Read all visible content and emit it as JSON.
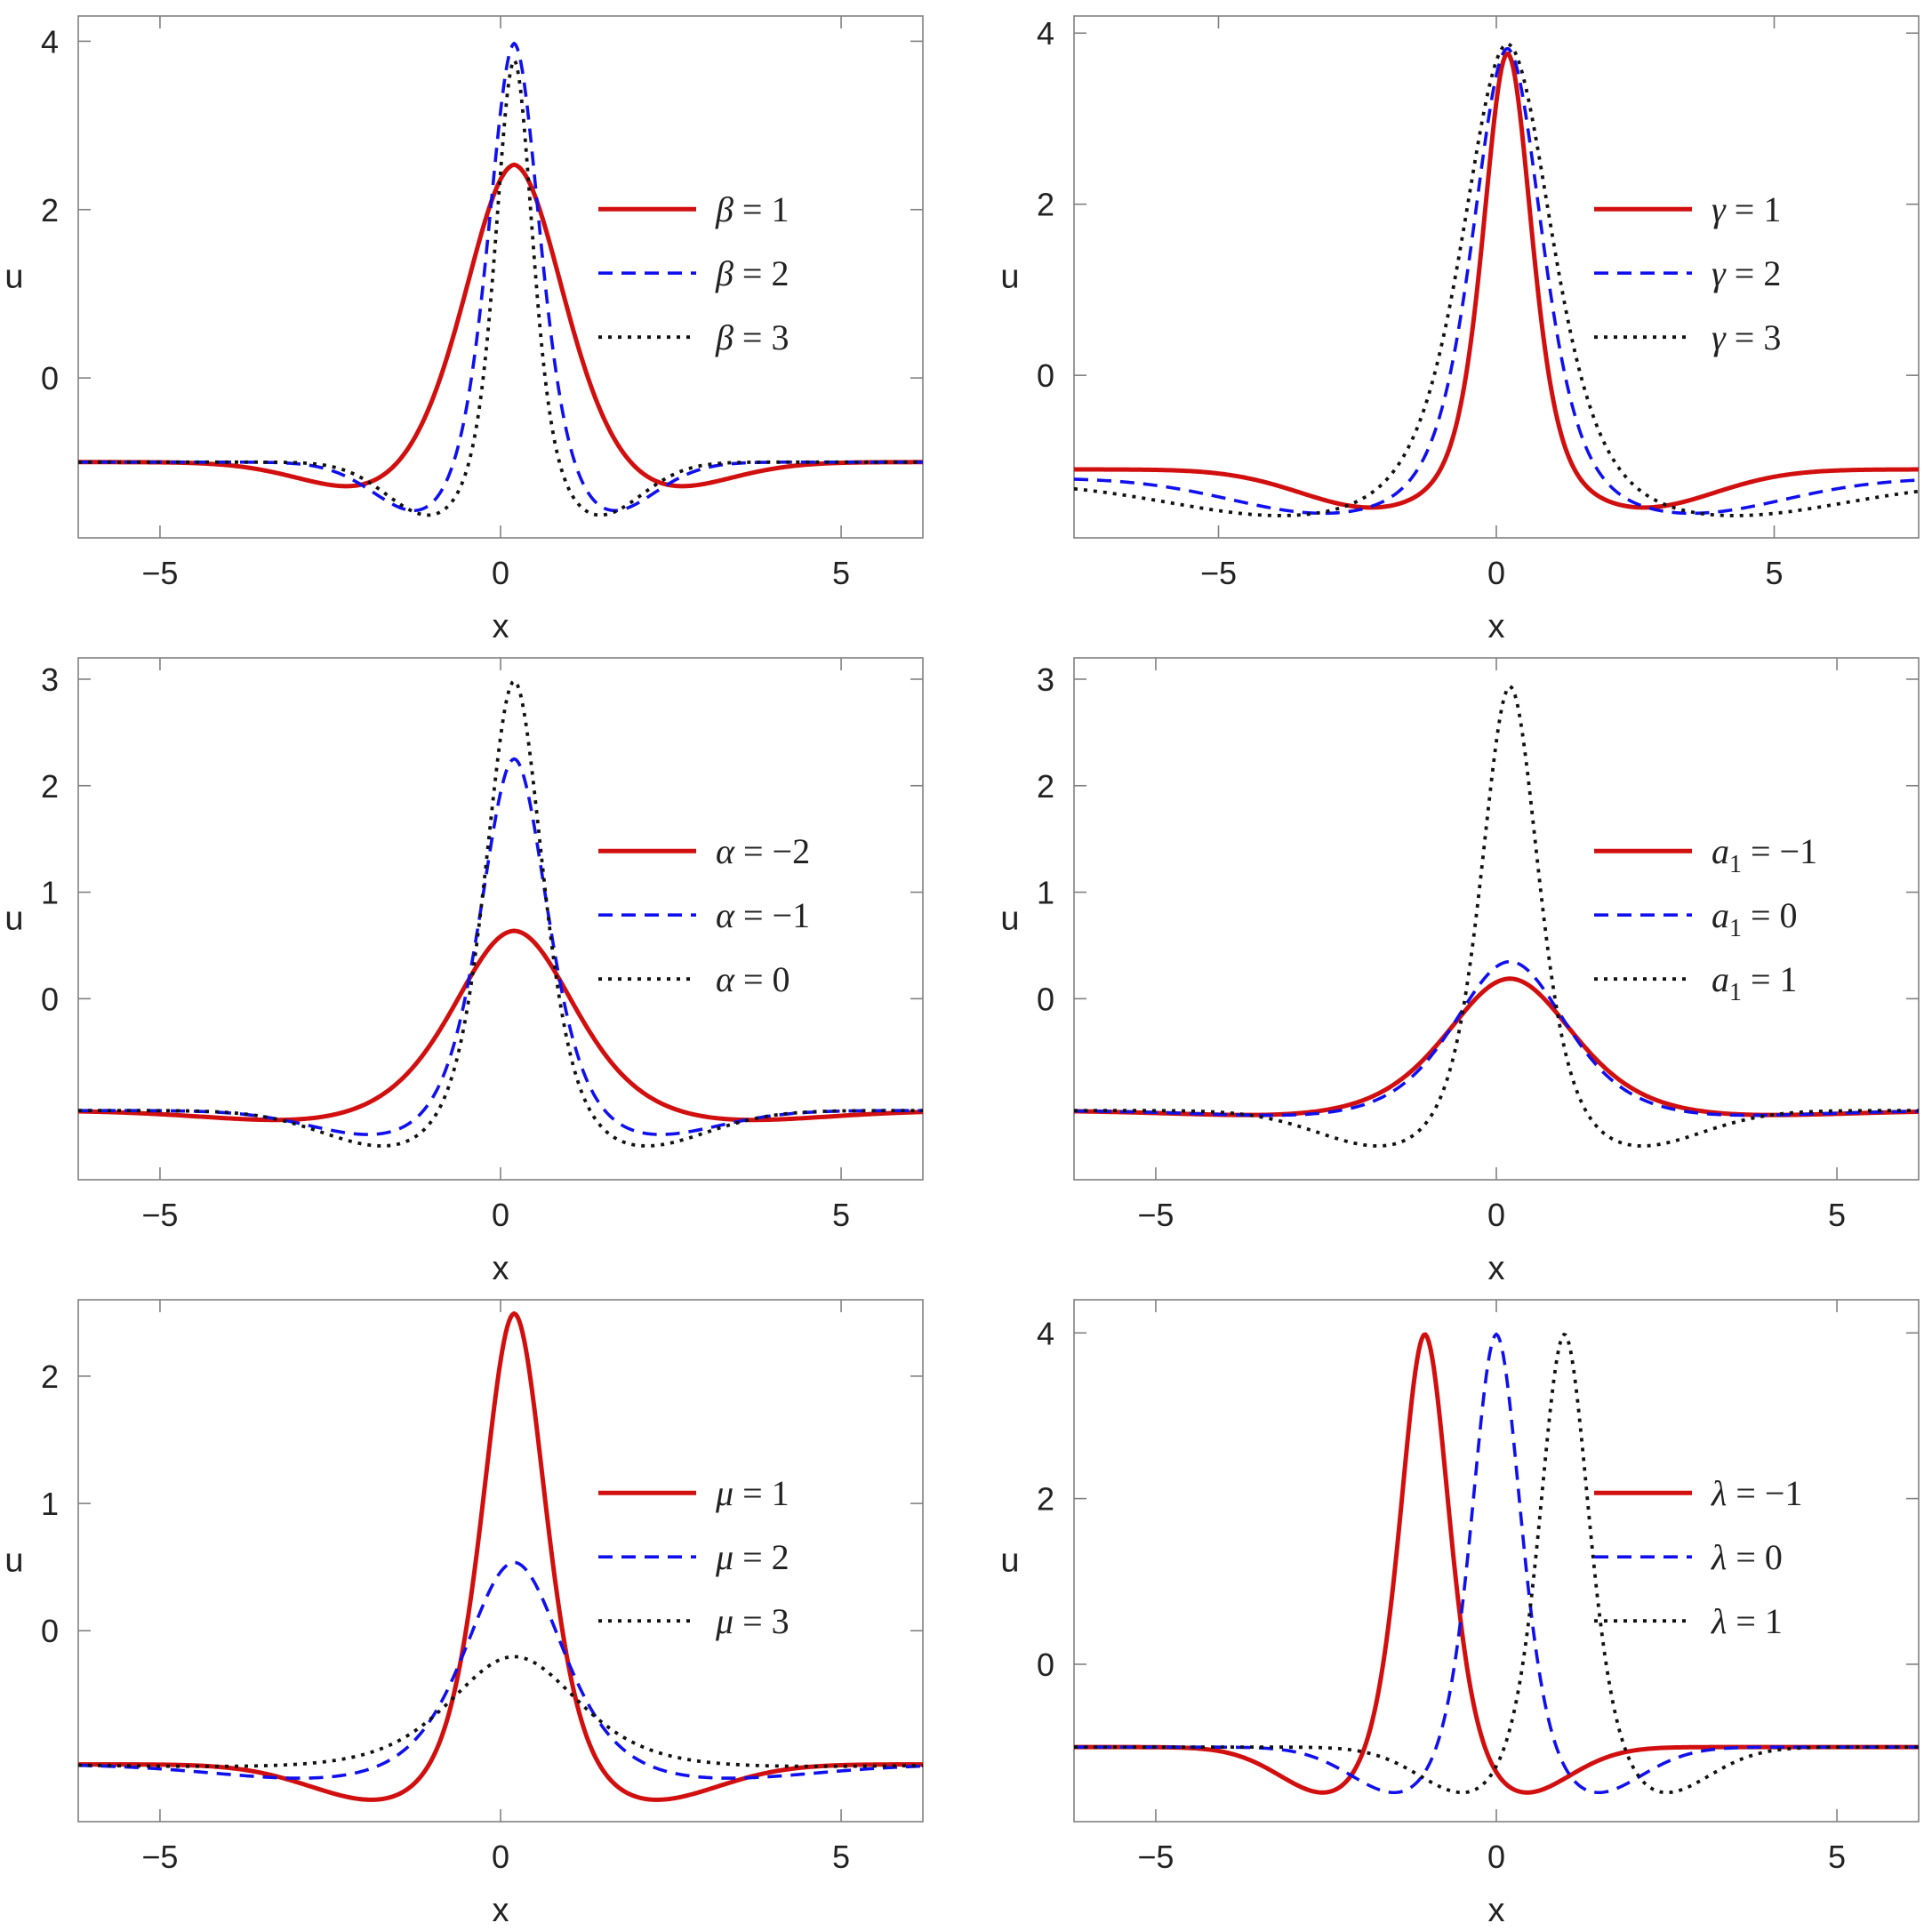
{
  "colors": {
    "red": "#d10f0f",
    "blue": "#1010ee",
    "black": "#111111"
  },
  "chart_data": [
    {
      "type": "line",
      "xlabel": "x",
      "ylabel": "u",
      "xlim": [
        -6.2,
        6.2
      ],
      "ylim": [
        -1.9,
        4.3
      ],
      "xticks": [
        -5,
        0,
        5
      ],
      "yticks": [
        0,
        2,
        4
      ],
      "peak_x": 0.2,
      "series": [
        {
          "name": "β = 1",
          "symbol": "β",
          "eq": " = 1",
          "style": "solid",
          "color": "#d10f0f",
          "peak": 2.62,
          "base": -1.0,
          "width": 1.0,
          "dip": 0.45,
          "dip_width": 1.9
        },
        {
          "name": "β = 2",
          "symbol": "β",
          "eq": " = 2",
          "style": "dashed",
          "color": "#1010ee",
          "peak": 4.1,
          "base": -1.0,
          "width": 0.5,
          "dip": 0.65,
          "dip_width": 1.3
        },
        {
          "name": "β = 3",
          "symbol": "β",
          "eq": " = 3",
          "style": "dotted",
          "color": "#111111",
          "peak": 3.9,
          "base": -1.0,
          "width": 0.36,
          "dip": 0.65,
          "dip_width": 1.2
        }
      ]
    },
    {
      "type": "line",
      "xlabel": "x",
      "ylabel": "u",
      "xlim": [
        -7.6,
        7.6
      ],
      "ylim": [
        -1.9,
        4.2
      ],
      "xticks": [
        -5,
        0,
        5
      ],
      "yticks": [
        0,
        2,
        4
      ],
      "peak_x": 0.2,
      "series": [
        {
          "name": "γ = 1",
          "symbol": "γ",
          "eq": " = 1",
          "style": "solid",
          "color": "#d10f0f",
          "peak": 3.85,
          "base": -1.1,
          "width": 0.58,
          "dip": 0.45,
          "dip_width": 2.4
        },
        {
          "name": "γ = 2",
          "symbol": "γ",
          "eq": " = 2",
          "style": "dashed",
          "color": "#1010ee",
          "peak": 3.9,
          "base": -1.2,
          "width": 0.82,
          "dip": 0.42,
          "dip_width": 3.2
        },
        {
          "name": "γ = 3",
          "symbol": "γ",
          "eq": " = 3",
          "style": "dotted",
          "color": "#111111",
          "peak": 3.95,
          "base": -1.25,
          "width": 1.05,
          "dip": 0.4,
          "dip_width": 3.9
        }
      ]
    },
    {
      "type": "line",
      "xlabel": "x",
      "ylabel": "u",
      "xlim": [
        -6.2,
        6.2
      ],
      "ylim": [
        -1.7,
        3.2
      ],
      "xticks": [
        -5,
        0,
        5
      ],
      "yticks": [
        0,
        1,
        2,
        3
      ],
      "peak_x": 0.2,
      "series": [
        {
          "name": "α = −2",
          "symbol": "α",
          "eq": " = −2",
          "style": "solid",
          "color": "#d10f0f",
          "peak": 0.66,
          "base": -1.05,
          "width": 1.2,
          "dip": 0.12,
          "dip_width": 2.8
        },
        {
          "name": "α = −1",
          "symbol": "α",
          "eq": " = −1",
          "style": "dashed",
          "color": "#1010ee",
          "peak": 2.3,
          "base": -1.05,
          "width": 0.65,
          "dip": 0.25,
          "dip_width": 1.9
        },
        {
          "name": "α = 0",
          "symbol": "α",
          "eq": " = 0",
          "style": "dotted",
          "color": "#111111",
          "peak": 3.05,
          "base": -1.05,
          "width": 0.55,
          "dip": 0.35,
          "dip_width": 1.8
        }
      ]
    },
    {
      "type": "line",
      "xlabel": "x",
      "ylabel": "u",
      "xlim": [
        -6.2,
        6.2
      ],
      "ylim": [
        -1.7,
        3.2
      ],
      "xticks": [
        -5,
        0,
        5
      ],
      "yticks": [
        0,
        1,
        2,
        3
      ],
      "peak_x": 0.2,
      "series": [
        {
          "name": "a1 = −1",
          "symbol": "a",
          "sub": "1",
          "eq": " = −1",
          "style": "solid",
          "color": "#d10f0f",
          "peak": 0.2,
          "base": -1.05,
          "width": 1.25,
          "dip": 0.06,
          "dip_width": 3.0
        },
        {
          "name": "a1 = 0",
          "symbol": "a",
          "sub": "1",
          "eq": " = 0",
          "style": "dashed",
          "color": "#1010ee",
          "peak": 0.36,
          "base": -1.05,
          "width": 1.1,
          "dip": 0.06,
          "dip_width": 2.8
        },
        {
          "name": "a1 = 1",
          "symbol": "a",
          "sub": "1",
          "eq": " = 1",
          "style": "dotted",
          "color": "#111111",
          "peak": 3.0,
          "base": -1.05,
          "width": 0.55,
          "dip": 0.35,
          "dip_width": 1.8
        }
      ]
    },
    {
      "type": "line",
      "xlabel": "x",
      "ylabel": "u",
      "xlim": [
        -6.2,
        6.2
      ],
      "ylim": [
        -1.5,
        2.6
      ],
      "xticks": [
        -5,
        0,
        5
      ],
      "yticks": [
        0,
        1,
        2
      ],
      "peak_x": 0.2,
      "series": [
        {
          "name": "μ = 1",
          "symbol": "μ",
          "eq": " = 1",
          "style": "solid",
          "color": "#d10f0f",
          "peak": 2.55,
          "base": -1.05,
          "width": 0.62,
          "dip": 0.3,
          "dip_width": 1.9
        },
        {
          "name": "μ = 2",
          "symbol": "μ",
          "eq": " = 2",
          "style": "dashed",
          "color": "#1010ee",
          "peak": 0.56,
          "base": -1.05,
          "width": 0.95,
          "dip": 0.12,
          "dip_width": 2.8
        },
        {
          "name": "μ = 3",
          "symbol": "μ",
          "eq": " = 3",
          "style": "dotted",
          "color": "#111111",
          "peak": -0.2,
          "base": -1.05,
          "width": 1.25,
          "dip": 0.02,
          "dip_width": 3.6
        }
      ]
    },
    {
      "type": "line",
      "xlabel": "x",
      "ylabel": "u",
      "xlim": [
        -6.2,
        6.2
      ],
      "ylim": [
        -1.9,
        4.4
      ],
      "xticks": [
        -5,
        0,
        5
      ],
      "yticks": [
        0,
        2,
        4
      ],
      "peak_x": 0.2,
      "series": [
        {
          "name": "λ = −1",
          "symbol": "λ",
          "eq": " = −1",
          "style": "solid",
          "color": "#d10f0f",
          "peak": 4.1,
          "base": -1.0,
          "width": 0.48,
          "dip": 0.6,
          "dip_width": 1.35,
          "center": -1.05
        },
        {
          "name": "λ = 0",
          "symbol": "λ",
          "eq": " = 0",
          "style": "dashed",
          "color": "#1010ee",
          "peak": 4.1,
          "base": -1.0,
          "width": 0.48,
          "dip": 0.6,
          "dip_width": 1.35,
          "center": 0.0
        },
        {
          "name": "λ = 1",
          "symbol": "λ",
          "eq": " = 1",
          "style": "dotted",
          "color": "#111111",
          "peak": 4.1,
          "base": -1.0,
          "width": 0.48,
          "dip": 0.6,
          "dip_width": 1.35,
          "center": 1.0
        }
      ]
    }
  ]
}
